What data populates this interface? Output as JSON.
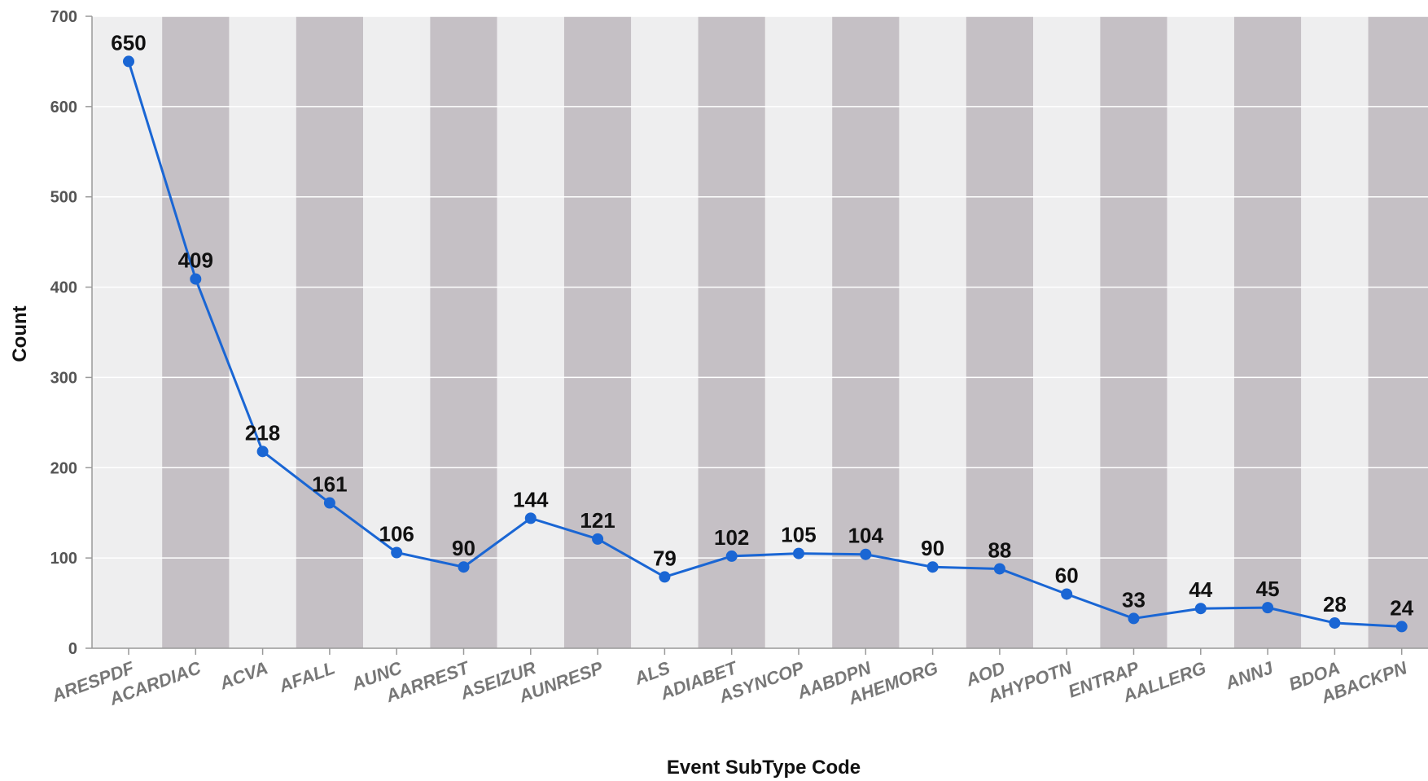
{
  "chart_data": {
    "type": "line",
    "title": "",
    "xlabel": "Event SubType Code",
    "ylabel": "Count",
    "ylim": [
      0,
      700
    ],
    "yticks": [
      0,
      100,
      200,
      300,
      400,
      500,
      600,
      700
    ],
    "grid": true,
    "background": "alternating vertical bands",
    "categories": [
      "ARESPDF",
      "ACARDIAC",
      "ACVA",
      "AFALL",
      "AUNC",
      "AARREST",
      "ASEIZUR",
      "AUNRESP",
      "ALS",
      "ADIABET",
      "ASYNCOP",
      "AABDPN",
      "AHEMORG",
      "AOD",
      "AHYPOTN",
      "ENTRAP",
      "AALLERG",
      "ANNJ",
      "BDOA",
      "ABACKPN"
    ],
    "series": [
      {
        "values": [
          650,
          409,
          218,
          161,
          106,
          90,
          144,
          121,
          79,
          102,
          105,
          104,
          90,
          88,
          60,
          33,
          44,
          45,
          28,
          24
        ]
      }
    ],
    "colors": {
      "line": "#1a66d4",
      "band_light": "#eeeeef",
      "band_dark": "#c5c0c5",
      "gridline": "#ffffff",
      "axis": "#999999"
    }
  }
}
